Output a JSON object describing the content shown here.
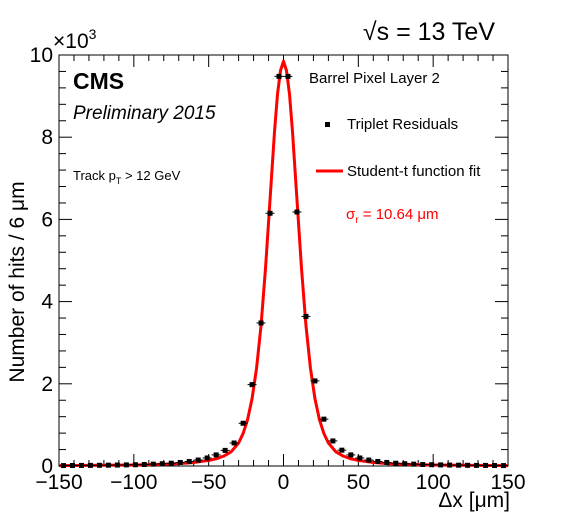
{
  "header": {
    "energy_label": "√s = 13 TeV",
    "experiment": "CMS",
    "status": "Preliminary 2015",
    "cut_label_prefix": "Track p",
    "cut_label_sub": "T",
    "cut_label_suffix": " > 12 GeV",
    "region_label": "Barrel Pixel Layer 2"
  },
  "legend": {
    "placement": "top-right",
    "data_entry": "Triplet Residuals",
    "fit_entry": "Student-t function fit",
    "sigma_prefix": "σ",
    "sigma_sub": "r",
    "sigma_suffix": " = 10.64 μm"
  },
  "colors": {
    "fit_line": "#ff0000",
    "data_points": "#000000",
    "sigma_text": "#ff0000"
  },
  "chart_data": {
    "type": "scatter",
    "xlabel": "Δx [μm]",
    "ylabel": "Number of hits / 6 μm",
    "y_multiplier_label": "×10",
    "y_multiplier_exp": "3",
    "xlim": [
      -150,
      150
    ],
    "ylim": [
      0,
      10000
    ],
    "x_ticks": [
      -150,
      -100,
      -50,
      0,
      50,
      100,
      150
    ],
    "y_ticks": [
      0,
      2000,
      4000,
      6000,
      8000,
      10000
    ],
    "y_tick_labels": [
      "0",
      "2",
      "4",
      "6",
      "8",
      "10"
    ],
    "grid": false,
    "series": [
      {
        "name": "Triplet Residuals",
        "type": "points",
        "x": [
          -147,
          -141,
          -135,
          -129,
          -123,
          -117,
          -111,
          -105,
          -99,
          -93,
          -87,
          -81,
          -75,
          -69,
          -63,
          -57,
          -51,
          -45,
          -39,
          -33,
          -27,
          -21,
          -15,
          -9,
          -3,
          3,
          9,
          15,
          21,
          27,
          33,
          39,
          45,
          51,
          57,
          63,
          69,
          75,
          81,
          87,
          93,
          99,
          105,
          111,
          117,
          123,
          129,
          135,
          141,
          147
        ],
        "y": [
          10,
          12,
          14,
          15,
          17,
          20,
          23,
          27,
          31,
          37,
          45,
          55,
          68,
          86,
          110,
          145,
          195,
          270,
          380,
          560,
          1040,
          1980,
          3480,
          6150,
          9480,
          9480,
          6180,
          3640,
          2070,
          1140,
          610,
          385,
          270,
          195,
          145,
          110,
          86,
          68,
          55,
          45,
          37,
          31,
          27,
          23,
          20,
          17,
          15,
          14,
          12,
          10
        ]
      },
      {
        "name": "Student-t function fit",
        "type": "line",
        "x": [
          -150,
          -140,
          -130,
          -120,
          -110,
          -100,
          -90,
          -80,
          -70,
          -60,
          -50,
          -45,
          -40,
          -35,
          -30,
          -27,
          -24,
          -21,
          -18,
          -15,
          -12,
          -9,
          -6,
          -4,
          -2,
          0,
          2,
          4,
          6,
          9,
          12,
          15,
          18,
          21,
          24,
          27,
          30,
          35,
          40,
          45,
          50,
          60,
          70,
          80,
          90,
          100,
          110,
          120,
          130,
          140,
          150
        ],
        "y": [
          10,
          12,
          14,
          17,
          20,
          25,
          32,
          42,
          58,
          85,
          135,
          175,
          240,
          345,
          560,
          790,
          1130,
          1640,
          2380,
          3420,
          4820,
          6480,
          8140,
          9050,
          9620,
          9850,
          9620,
          9050,
          8140,
          6480,
          4820,
          3420,
          2380,
          1640,
          1130,
          790,
          560,
          345,
          240,
          175,
          135,
          85,
          58,
          42,
          32,
          25,
          20,
          17,
          14,
          12,
          10
        ]
      }
    ]
  }
}
